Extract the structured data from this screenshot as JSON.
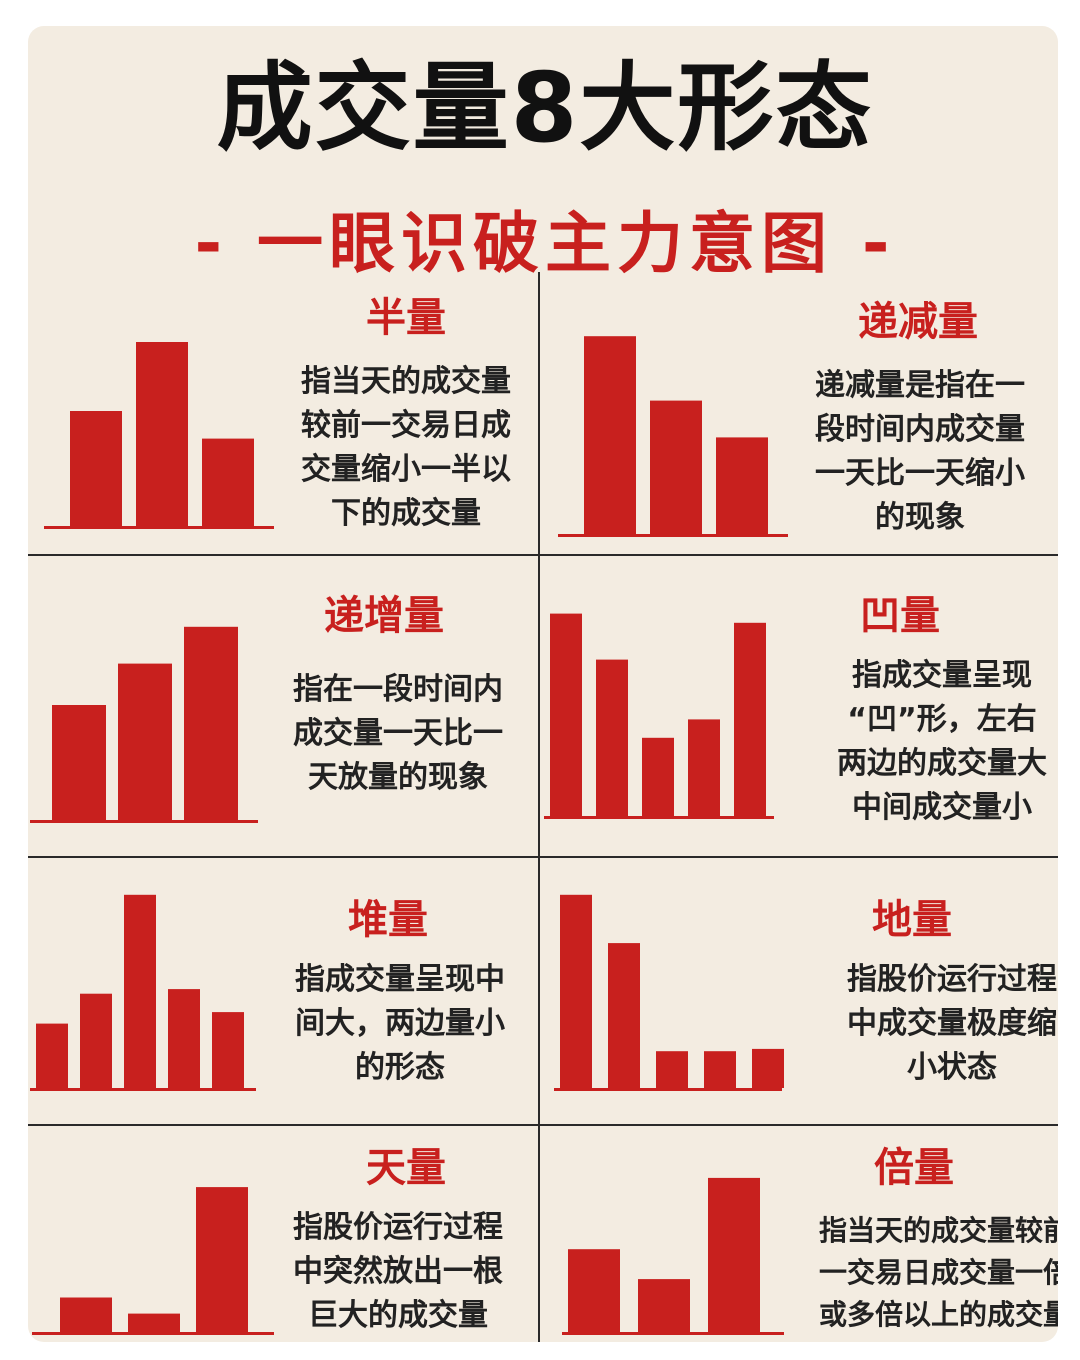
{
  "title": "成交量8大形态",
  "subtitle": "- 一眼识破主力意图 -",
  "colors": {
    "accent": "#c8201e",
    "background": "#f3ece1",
    "text": "#222222"
  },
  "panels": [
    {
      "title": "半量",
      "desc": [
        "指当天的成交量",
        "较前一交易日成",
        "交量缩小一半以",
        "下的成交量"
      ],
      "chart_data": {
        "type": "bar",
        "values": [
          0.5,
          0.8,
          0.38
        ]
      }
    },
    {
      "title": "递减量",
      "desc": [
        "递减量是指在一",
        "段时间内成交量",
        "一天比一天缩小",
        "的现象"
      ],
      "chart_data": {
        "type": "bar",
        "values": [
          0.86,
          0.58,
          0.42
        ]
      }
    },
    {
      "title": "递增量",
      "desc": [
        "指在一段时间内",
        "成交量一天比一",
        "天放量的现象"
      ],
      "chart_data": {
        "type": "bar",
        "values": [
          0.5,
          0.68,
          0.84
        ]
      }
    },
    {
      "title": "凹量",
      "desc": [
        "指成交量呈现",
        "“凹”形，左右",
        "两边的成交量大",
        "中间成交量小"
      ],
      "chart_data": {
        "type": "bar",
        "values": [
          0.88,
          0.68,
          0.34,
          0.42,
          0.84
        ]
      }
    },
    {
      "title": "堆量",
      "desc": [
        "指成交量呈现中",
        "间大，两边量小",
        "的形态"
      ],
      "chart_data": {
        "type": "bar",
        "values": [
          0.28,
          0.41,
          0.84,
          0.43,
          0.33
        ]
      }
    },
    {
      "title": "地量",
      "desc": [
        "指股价运行过程",
        "中成交量极度缩",
        "小状态"
      ],
      "chart_data": {
        "type": "bar",
        "values": [
          0.84,
          0.63,
          0.16,
          0.16,
          0.17
        ]
      }
    },
    {
      "title": "天量",
      "desc": [
        "指股价运行过程",
        "中突然放出一根",
        "巨大的成交量"
      ],
      "chart_data": {
        "type": "bar",
        "values": [
          0.15,
          0.08,
          0.63
        ]
      }
    },
    {
      "title": "倍量",
      "desc": [
        "指当天的成交量较前",
        "一交易日成交量一倍",
        "或多倍以上的成交量"
      ],
      "chart_data": {
        "type": "bar",
        "values": [
          0.36,
          0.23,
          0.67
        ]
      }
    }
  ]
}
